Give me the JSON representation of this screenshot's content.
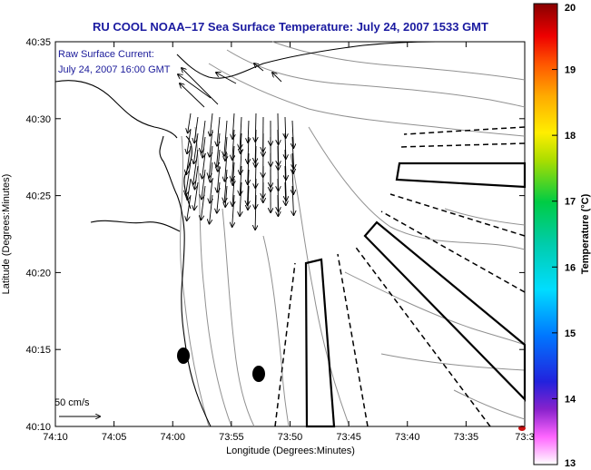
{
  "title": "RU COOL  NOAA–17  Sea Surface Temperature:  July 24, 2007 1533 GMT",
  "overlay": {
    "line1": "Raw Surface Current:",
    "line2": "July 24, 2007 16:00 GMT"
  },
  "scale_label": "50 cm/s",
  "axes": {
    "xlabel": "Longitude (Degrees:Minutes)",
    "ylabel": "Latitude (Degrees:Minutes)",
    "x_ticks": [
      "74:10",
      "74:05",
      "74:00",
      "73:55",
      "73:50",
      "73:45",
      "73:40",
      "73:35",
      "73:3"
    ],
    "y_ticks": [
      "40:35",
      "40:30",
      "40:25",
      "40:20",
      "40:15",
      "40:10"
    ]
  },
  "colorbar": {
    "label": "Temperature (°C)",
    "ticks": [
      "20",
      "19",
      "18",
      "17",
      "16",
      "15",
      "14",
      "13"
    ],
    "min": 13,
    "max": 20
  },
  "colors": {
    "title": "#1a1aa0",
    "overlay": "#1a1a9a",
    "land": "#ffffff",
    "contour": "#909090",
    "coast": "#000000"
  }
}
